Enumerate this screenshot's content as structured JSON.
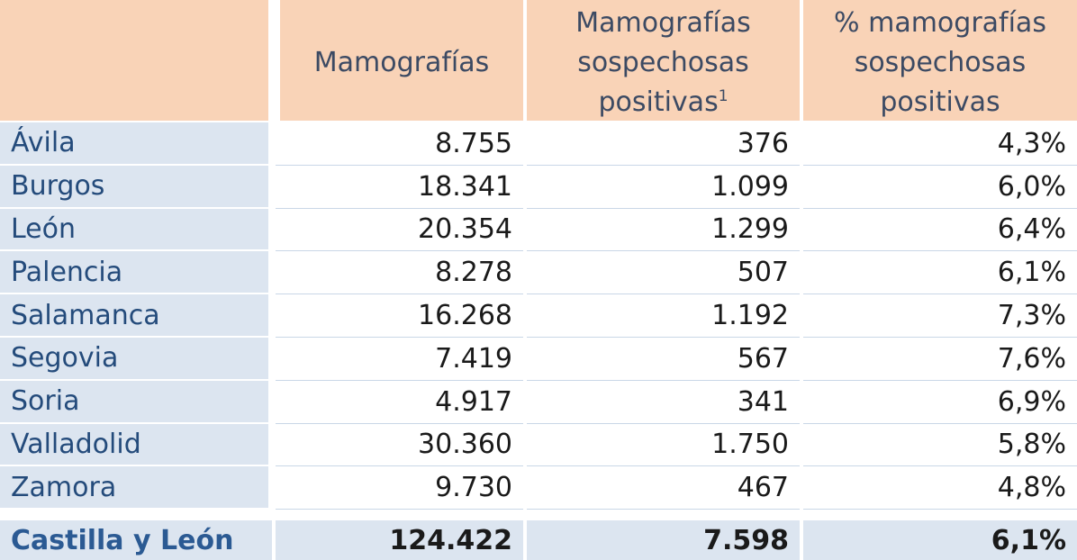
{
  "table": {
    "headers": [
      "",
      "Mamografías",
      [
        "Mamografías",
        "sospechosas",
        "positivas"
      ],
      [
        "% mamografías",
        "sospechosas",
        "positivas"
      ]
    ],
    "header_footnote_mark": "1",
    "rows": [
      {
        "provincia": "Ávila",
        "mamografias": "8.755",
        "sospechosas": "376",
        "porcentaje": "4,3%"
      },
      {
        "provincia": "Burgos",
        "mamografias": "18.341",
        "sospechosas": "1.099",
        "porcentaje": "6,0%"
      },
      {
        "provincia": "León",
        "mamografias": "20.354",
        "sospechosas": "1.299",
        "porcentaje": "6,4%"
      },
      {
        "provincia": "Palencia",
        "mamografias": "8.278",
        "sospechosas": "507",
        "porcentaje": "6,1%"
      },
      {
        "provincia": "Salamanca",
        "mamografias": "16.268",
        "sospechosas": "1.192",
        "porcentaje": "7,3%"
      },
      {
        "provincia": "Segovia",
        "mamografias": "7.419",
        "sospechosas": "567",
        "porcentaje": "7,6%"
      },
      {
        "provincia": "Soria",
        "mamografias": "4.917",
        "sospechosas": "341",
        "porcentaje": "6,9%"
      },
      {
        "provincia": "Valladolid",
        "mamografias": "30.360",
        "sospechosas": "1.750",
        "porcentaje": "5,8%"
      },
      {
        "provincia": "Zamora",
        "mamografias": "9.730",
        "sospechosas": "467",
        "porcentaje": "4,8%"
      }
    ],
    "total": {
      "provincia": "Castilla y León",
      "mamografias": "124.422",
      "sospechosas": "7.598",
      "porcentaje": "6,1%"
    }
  },
  "colors": {
    "header_bg": "#f9d3b7",
    "label_bg": "#dce5f0",
    "label_text": "#244b7b",
    "total_text": "#2b5a93"
  }
}
